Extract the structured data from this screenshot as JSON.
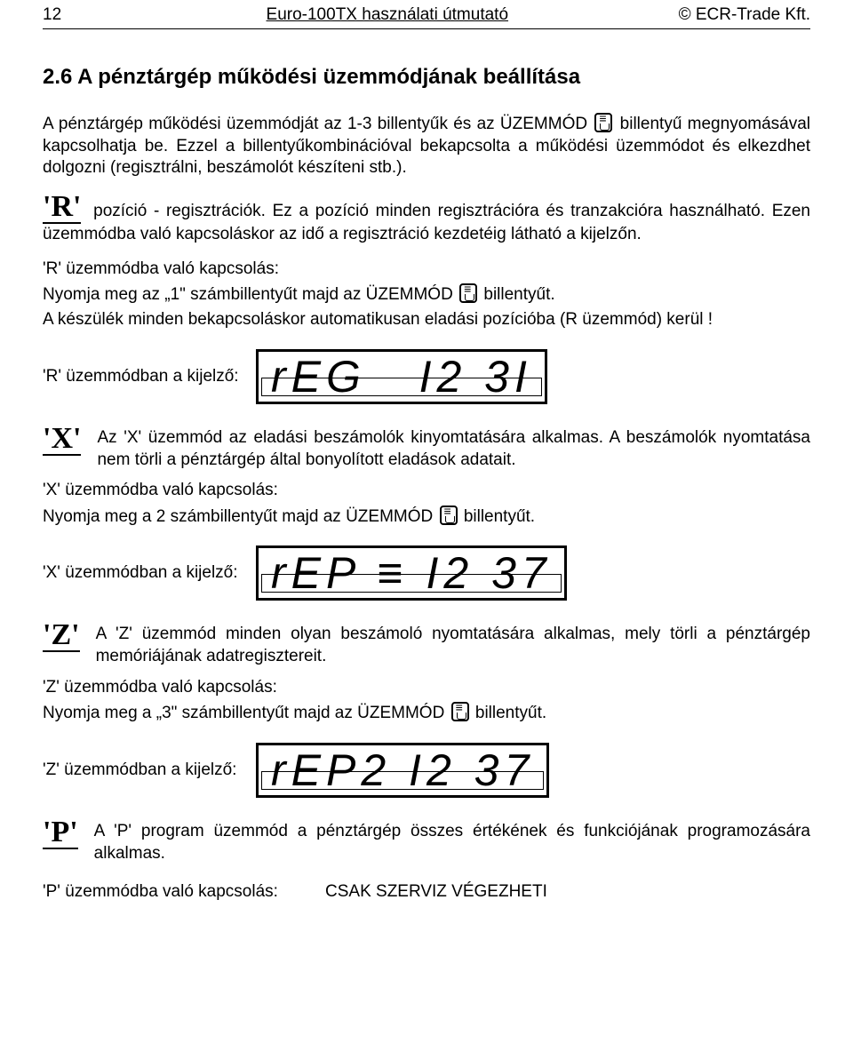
{
  "header": {
    "page_number": "12",
    "center": "Euro-100TX használati útmutató",
    "right": "© ECR-Trade Kft."
  },
  "section_title": "2.6 A pénztárgép működési üzemmódjának beállítása",
  "intro_part1": "A pénztárgép működési üzemmódját az 1-3 billentyűk és az ÜZEMMÓD",
  "intro_part2": "billentyű megnyomásával kapcsolhatja be. Ezzel a billentyűkombinációval bekapcsolta a működési üzemmódot és elkezdhet dolgozni (regisztrálni, beszámolót készíteni stb.).",
  "r": {
    "letter": "'R'",
    "desc": "pozíció - regisztrációk. Ez a pozíció minden regisztrációra és tranzakcióra használható. Ezen üzemmódba való kapcsoláskor az idő a regisztráció kezdetéig látható a kijelzőn.",
    "switch_title": "'R' üzemmódba való kapcsolás:",
    "switch_line_a": "Nyomja meg az „1\" számbillentyűt majd az ÜZEMMÓD ",
    "switch_line_b": "billentyűt.",
    "auto_line": "A készülék minden bekapcsoláskor automatikusan eladási pozícióba (R üzemmód) kerül !",
    "display_label": "'R' üzemmódban a kijelző:",
    "display_text": "rEG   I2 3I"
  },
  "x": {
    "letter": "'X'",
    "desc": "Az 'X' üzemmód az eladási beszámolók kinyomtatására alkalmas. A beszámolók nyomtatása nem törli a pénztárgép által bonyolított eladások adatait.",
    "switch_title": "'X' üzemmódba való kapcsolás:",
    "switch_line_a": "Nyomja meg a 2 számbillentyűt majd az ÜZEMMÓD",
    "switch_line_b": "billentyűt.",
    "display_label": "'X' üzemmódban a kijelző:",
    "display_text": "rEP ≡ I2 37"
  },
  "z": {
    "letter": "'Z'",
    "desc": "A 'Z' üzemmód minden olyan beszámoló nyomtatására alkalmas, mely törli a pénztárgép memóriájának adatregisztereit.",
    "switch_title": "'Z' üzemmódba való kapcsolás:",
    "switch_line_a": "Nyomja meg a „3\" számbillentyűt majd az ÜZEMMÓD ",
    "switch_line_b": " billentyűt.",
    "display_label": "'Z' üzemmódban a kijelző:",
    "display_text": "rEP2 I2 37"
  },
  "p": {
    "letter": "'P'",
    "desc": "A 'P' program üzemmód a pénztárgép összes értékének és funkciójának programozására alkalmas.",
    "switch_label": "'P' üzemmódba való kapcsolás:",
    "switch_value": "CSAK SZERVIZ VÉGEZHETI"
  }
}
